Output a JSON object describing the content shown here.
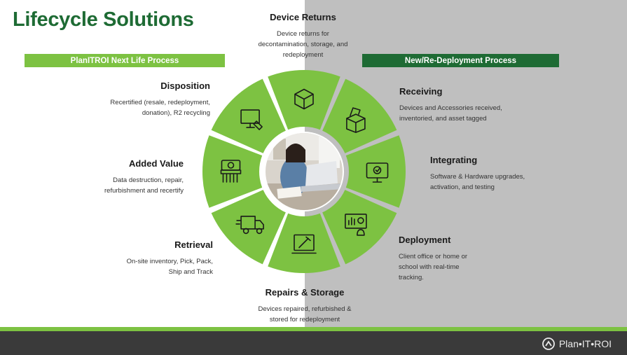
{
  "title": "Lifecycle Solutions",
  "left_bar": "PlanITROI Next Life Process",
  "right_bar": "New/Re-Deployment Process",
  "steps": {
    "device_returns": {
      "title": "Device Returns",
      "desc": [
        "Device returns for",
        "decontamination, storage, and",
        "redeployment"
      ]
    },
    "receiving": {
      "title": "Receiving",
      "desc": [
        "Devices and Accessories received,",
        "inventoried, and asset tagged"
      ]
    },
    "integrating": {
      "title": "Integrating",
      "desc": [
        "Software & Hardware upgrades,",
        "activation, and testing"
      ]
    },
    "deployment": {
      "title": "Deployment",
      "desc": [
        "Client office or home or",
        "school with real-time",
        "tracking."
      ]
    },
    "repairs": {
      "title": "Repairs & Storage",
      "desc": [
        "Devices repaired, refurbished &",
        "stored for redeployment"
      ]
    },
    "retrieval": {
      "title": "Retrieval",
      "desc": [
        "On-site inventory, Pick, Pack,",
        "Ship and Track"
      ]
    },
    "added_value": {
      "title": "Added Value",
      "desc": [
        "Data destruction, repair,",
        "refurbishment and recertify"
      ]
    },
    "disposition": {
      "title": "Disposition",
      "desc": [
        "Recertified (resale, redeployment,",
        "donation), R2 recycling"
      ]
    }
  },
  "wheel_icons": [
    "box-icon",
    "open-box-icon",
    "monitor-icon",
    "dashboard-icon",
    "laptop-tools-icon",
    "delivery-truck-icon",
    "shredder-icon",
    "monitor-tag-icon"
  ],
  "footer_logo": "Plan•IT•ROI",
  "colors": {
    "dark_green": "#1e6b34",
    "light_green": "#7dc242",
    "gray_panel": "#bfbfbf",
    "footer": "#3a3a3a"
  }
}
